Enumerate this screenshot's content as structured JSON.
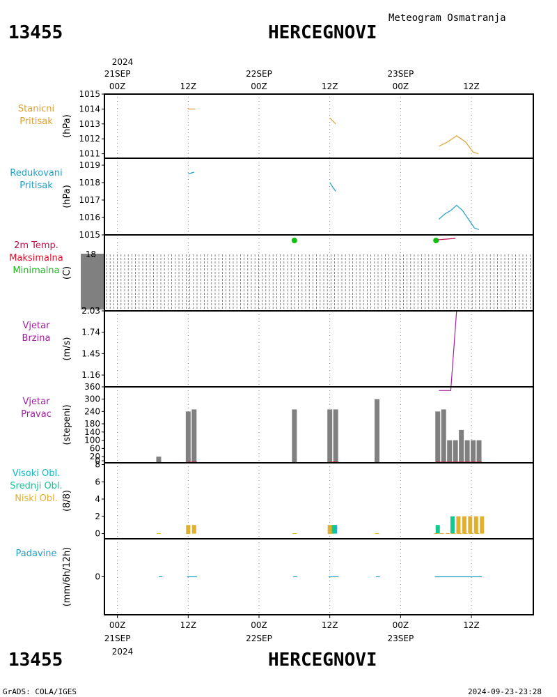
{
  "header": {
    "station_id": "13455",
    "station_name": "HERCEGNOVI",
    "meteogram_title": "Meteogram Osmatranja"
  },
  "footer": {
    "source": "GrADS: COLA/IGES",
    "timestamp": "2024-09-23-23:28"
  },
  "time_axis": {
    "top_year": "2024",
    "ticks": [
      {
        "hour": 0,
        "label": "00Z",
        "date": "21SEP"
      },
      {
        "hour": 12,
        "label": "12Z",
        "date": ""
      },
      {
        "hour": 24,
        "label": "00Z",
        "date": "22SEP"
      },
      {
        "hour": 36,
        "label": "12Z",
        "date": ""
      },
      {
        "hour": 48,
        "label": "00Z",
        "date": "23SEP"
      },
      {
        "hour": 60,
        "label": "12Z",
        "date": ""
      }
    ],
    "bottom_year": "2024"
  },
  "colors": {
    "station_pressure": "#e0a030",
    "reduced_pressure": "#20a0c8",
    "temp": "#c0104c",
    "tmax": "#e0102c",
    "tmin": "#10c010",
    "wind": "#a020a0",
    "bars": "#808080",
    "high_cloud": "#10b8c8",
    "mid_cloud": "#10c890",
    "low_cloud": "#e0b030",
    "precip": "#20a0c8"
  },
  "chart_data": [
    {
      "type": "line",
      "id": "station_pressure",
      "labels": [
        "Stanicni",
        "Pritisak"
      ],
      "ylabel": "(hPa)",
      "ylim": [
        1010.7,
        1015.0
      ],
      "yticks": [
        1011,
        1012,
        1013,
        1014,
        1015
      ],
      "segments": [
        [
          [
            12.0,
            1014.0
          ],
          [
            13.2,
            1014.0
          ]
        ],
        [
          [
            36.0,
            1013.4
          ],
          [
            37.0,
            1013.0
          ]
        ],
        [
          [
            54.5,
            1011.5
          ],
          [
            56.0,
            1011.8
          ],
          [
            57.5,
            1012.2
          ],
          [
            59.0,
            1011.8
          ],
          [
            60.3,
            1011.1
          ],
          [
            61.2,
            1011.0
          ]
        ]
      ]
    },
    {
      "type": "line",
      "id": "reduced_pressure",
      "labels": [
        "Redukovani",
        "Pritisak"
      ],
      "ylabel": "(hPa)",
      "ylim": [
        1015.0,
        1019.4
      ],
      "yticks": [
        1015,
        1016,
        1017,
        1018,
        1019
      ],
      "segments": [
        [
          [
            12.0,
            1018.5
          ],
          [
            13.0,
            1018.6
          ]
        ],
        [
          [
            36.0,
            1018.0
          ],
          [
            37.0,
            1017.5
          ]
        ],
        [
          [
            54.5,
            1015.9
          ],
          [
            55.5,
            1016.2
          ],
          [
            56.5,
            1016.4
          ],
          [
            57.5,
            1016.7
          ],
          [
            58.5,
            1016.4
          ],
          [
            59.5,
            1015.9
          ],
          [
            60.5,
            1015.4
          ],
          [
            61.3,
            1015.3
          ]
        ]
      ]
    },
    {
      "type": "line",
      "id": "temperature",
      "labels": [
        "2m Temp.",
        "Maksimalna",
        "Minimalna"
      ],
      "ylabel": "(C)",
      "ytick_label": "18",
      "min_points": [
        [
          30.0
        ],
        [
          54.0
        ]
      ],
      "tmax_segment": [
        [
          54.3,
          18.0
        ],
        [
          57.3,
          18.1
        ]
      ]
    },
    {
      "type": "line",
      "id": "wind_speed",
      "labels": [
        "Vjetar",
        "Brzina"
      ],
      "ylabel": "(m/s)",
      "ylim": [
        1.0,
        2.03
      ],
      "yticks": [
        1.16,
        1.45,
        1.74,
        2.03
      ],
      "segments": [
        [
          [
            12.0,
            2.03
          ],
          [
            13.0,
            2.03
          ]
        ],
        [
          [
            36.0,
            2.03
          ],
          [
            37.0,
            2.03
          ]
        ],
        [
          [
            54.5,
            0.95
          ],
          [
            56.5,
            0.95
          ],
          [
            57.5,
            2.03
          ],
          [
            61.3,
            2.03
          ]
        ]
      ]
    },
    {
      "type": "bar",
      "id": "wind_direction",
      "labels": [
        "Vjetar",
        "Pravac"
      ],
      "ylabel": "(stepeni)",
      "ylim": [
        -10,
        360
      ],
      "yticks": [
        0,
        20,
        60,
        100,
        140,
        180,
        240,
        300,
        360
      ],
      "bars": [
        [
          7,
          20
        ],
        [
          12,
          240
        ],
        [
          13,
          250
        ],
        [
          30,
          250
        ],
        [
          36,
          250
        ],
        [
          37,
          250
        ],
        [
          44,
          300
        ],
        [
          54.3,
          240
        ],
        [
          55.3,
          250
        ],
        [
          56.3,
          100
        ],
        [
          57.3,
          100
        ],
        [
          58.3,
          150
        ],
        [
          59.3,
          100
        ],
        [
          60.3,
          100
        ],
        [
          61.3,
          100
        ]
      ],
      "baseline_segments": [
        [
          12.0,
          13.5
        ],
        [
          36.0,
          37.5
        ],
        [
          54.0,
          61.8
        ]
      ]
    },
    {
      "type": "bar",
      "id": "cloud_cover",
      "labels": [
        "Visoki Obl.",
        "Srednji Obl.",
        "Niski Obl."
      ],
      "ylabel": "(8/8)",
      "ylim": [
        -0.6,
        8.2
      ],
      "yticks": [
        0,
        2,
        4,
        6,
        8
      ],
      "series": [
        {
          "name": "Visoki Obl.",
          "bars": [
            [
              36.9,
              1
            ]
          ]
        },
        {
          "name": "Srednji Obl.",
          "bars": [
            [
              54.3,
              1
            ],
            [
              56.8,
              2
            ],
            [
              36.5,
              1
            ]
          ]
        },
        {
          "name": "Niski Obl.",
          "bars": [
            [
              12.0,
              1
            ],
            [
              13.0,
              1
            ],
            [
              36.0,
              1
            ],
            [
              57.8,
              2
            ],
            [
              58.8,
              2
            ],
            [
              59.8,
              2
            ],
            [
              60.8,
              2
            ],
            [
              61.8,
              2
            ]
          ]
        }
      ],
      "trace_points": [
        7,
        12,
        30,
        36,
        44,
        54,
        55,
        56,
        57,
        58,
        59,
        60,
        61
      ]
    },
    {
      "type": "line",
      "id": "precipitation",
      "labels": [
        "Padavine"
      ],
      "ylabel": "(mm/6h/12h)",
      "ylim": [
        -5,
        5
      ],
      "yticks": [
        0
      ],
      "segments": [
        [
          [
            7.0,
            0
          ],
          [
            7.6,
            0
          ]
        ],
        [
          [
            11.8,
            0
          ],
          [
            13.5,
            0
          ]
        ],
        [
          [
            29.8,
            0
          ],
          [
            30.5,
            0
          ]
        ],
        [
          [
            35.8,
            0
          ],
          [
            37.5,
            0
          ]
        ],
        [
          [
            43.8,
            0
          ],
          [
            44.5,
            0
          ]
        ],
        [
          [
            53.8,
            0
          ],
          [
            61.8,
            0
          ]
        ]
      ]
    }
  ]
}
